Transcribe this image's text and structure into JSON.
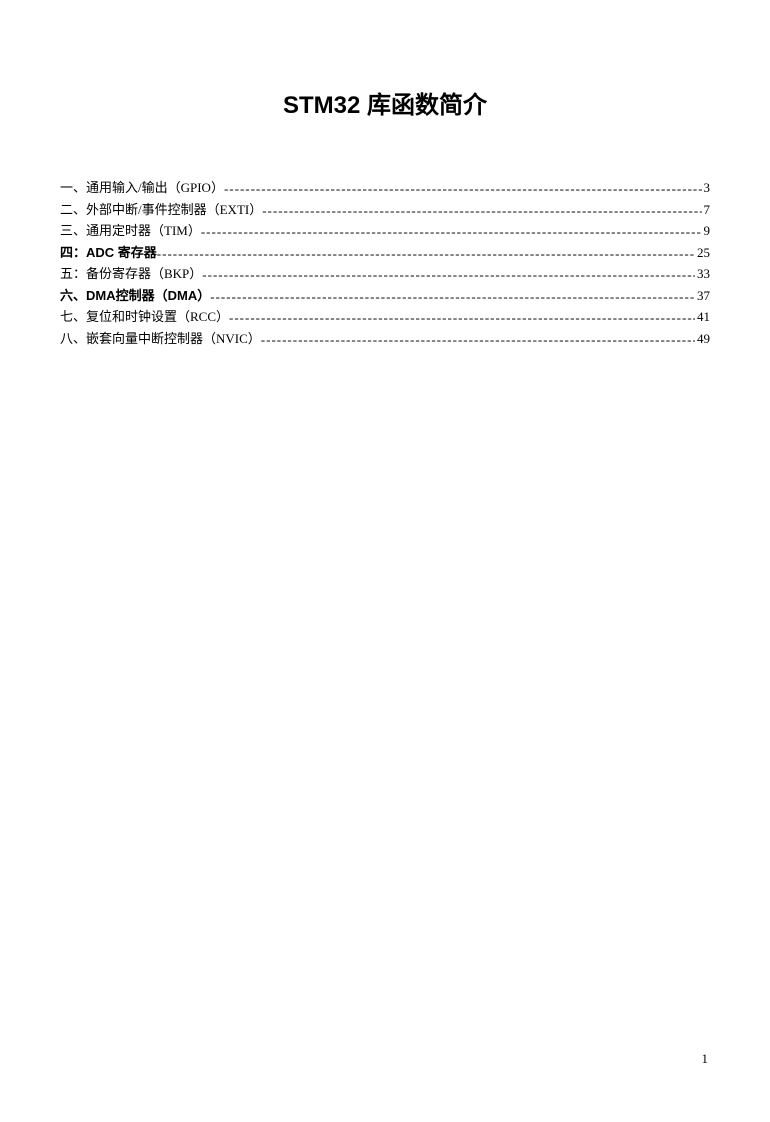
{
  "document": {
    "title": "STM32 库函数简介",
    "page_number": "1",
    "background_color": "#ffffff",
    "text_color": "#000000",
    "title_fontsize": 24,
    "body_fontsize": 13
  },
  "toc": {
    "entries": [
      {
        "label": "一、通用输入/输出（GPIO）",
        "page": "3",
        "bold": false
      },
      {
        "label": "二、外部中断/事件控制器（EXTI）",
        "page": "7",
        "bold": false
      },
      {
        "label": "三、通用定时器（TIM）",
        "page": "9",
        "bold": false
      },
      {
        "label": "四：ADC 寄存器",
        "page": "25",
        "bold": true
      },
      {
        "label": "五：备份寄存器（BKP）",
        "page": "33",
        "bold": false
      },
      {
        "label": "六、DMA控制器（DMA）",
        "page": "37",
        "bold": true
      },
      {
        "label": "七、复位和时钟设置（RCC）",
        "page": "41",
        "bold": false
      },
      {
        "label": "八、嵌套向量中断控制器（NVIC）",
        "page": "49",
        "bold": false
      }
    ]
  }
}
